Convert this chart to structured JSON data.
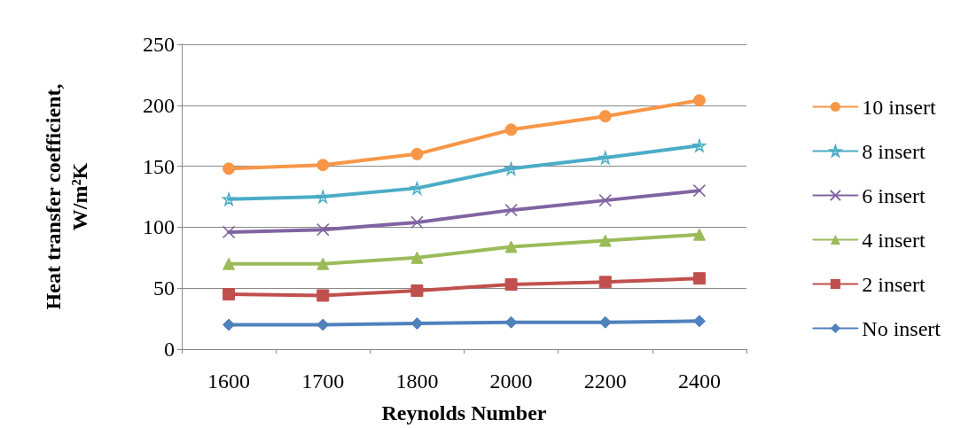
{
  "chart_data": {
    "type": "line",
    "xlabel": "Reynolds Number",
    "ylabel": "Heat transfer coefficient,\nW/m²K",
    "categories": [
      "1600",
      "1700",
      "1800",
      "2000",
      "2200",
      "2400"
    ],
    "ylim": [
      0,
      250
    ],
    "yticks": [
      0,
      50,
      100,
      150,
      200,
      250
    ],
    "grid": "y",
    "legend": "right",
    "series": [
      {
        "name": "10 insert",
        "color": "#f79646",
        "marker": "circle",
        "values": [
          148,
          151,
          160,
          180,
          191,
          204
        ]
      },
      {
        "name": "8 insert",
        "color": "#4bacc6",
        "marker": "star",
        "values": [
          123,
          125,
          132,
          148,
          157,
          167
        ]
      },
      {
        "name": "6 insert",
        "color": "#8064a2",
        "marker": "cross",
        "values": [
          96,
          98,
          104,
          114,
          122,
          130
        ]
      },
      {
        "name": "4 insert",
        "color": "#9bbb59",
        "marker": "triangle",
        "values": [
          70,
          70,
          75,
          84,
          89,
          94
        ]
      },
      {
        "name": "2 insert",
        "color": "#c0504d",
        "marker": "square",
        "values": [
          45,
          44,
          48,
          53,
          55,
          58
        ]
      },
      {
        "name": "No insert",
        "color": "#4f81bd",
        "marker": "diamond",
        "values": [
          20,
          20,
          21,
          22,
          22,
          23
        ]
      }
    ]
  }
}
